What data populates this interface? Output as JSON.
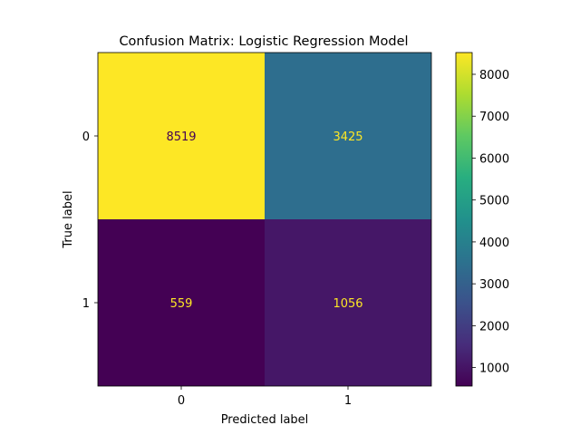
{
  "chart_data": {
    "type": "heatmap",
    "title": "Confusion Matrix: Logistic Regression Model",
    "xlabel": "Predicted label",
    "ylabel": "True label",
    "x_categories": [
      "0",
      "1"
    ],
    "y_categories": [
      "0",
      "1"
    ],
    "matrix": [
      [
        8519,
        3425
      ],
      [
        559,
        1056
      ]
    ],
    "colormap": "viridis",
    "colorbar": {
      "range": [
        559,
        8519
      ],
      "ticks": [
        1000,
        2000,
        3000,
        4000,
        5000,
        6000,
        7000,
        8000
      ]
    },
    "text_colors": {
      "on_light": "#440154",
      "on_dark": "#fde725"
    }
  }
}
